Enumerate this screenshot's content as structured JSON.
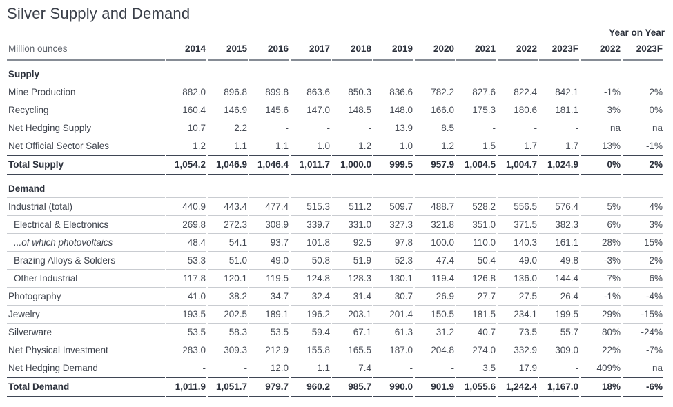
{
  "colors": {
    "text": "#454a54",
    "label": "#3e434d",
    "muted": "#5c616a",
    "strong": "#2c313c",
    "rule_light": "#c9ccd1",
    "rule_medium": "#868c95",
    "rule_dark": "#3f4655"
  },
  "page": {
    "title": "Silver Supply and Demand",
    "year_on_year_label": "Year on Year"
  },
  "table": {
    "unit_label": "Million ounces",
    "year_columns": [
      "2014",
      "2015",
      "2016",
      "2017",
      "2018",
      "2019",
      "2020",
      "2021",
      "2022",
      "2023F"
    ],
    "yoy_columns": [
      "2022",
      "2023F"
    ],
    "sections": [
      {
        "heading": "Supply",
        "rows": [
          {
            "label": "Mine Production",
            "values": [
              "882.0",
              "896.8",
              "899.8",
              "863.6",
              "850.3",
              "836.6",
              "782.2",
              "827.6",
              "822.4",
              "842.1"
            ],
            "yoy": [
              "-1%",
              "2%"
            ]
          },
          {
            "label": "Recycling",
            "values": [
              "160.4",
              "146.9",
              "145.6",
              "147.0",
              "148.5",
              "148.0",
              "166.0",
              "175.3",
              "180.6",
              "181.1"
            ],
            "yoy": [
              "3%",
              "0%"
            ]
          },
          {
            "label": "Net Hedging Supply",
            "values": [
              "10.7",
              "2.2",
              "-",
              "-",
              "-",
              "13.9",
              "8.5",
              "-",
              "-",
              "-"
            ],
            "yoy": [
              "na",
              "na"
            ]
          },
          {
            "label": "Net Official Sector Sales",
            "values": [
              "1.2",
              "1.1",
              "1.1",
              "1.0",
              "1.2",
              "1.0",
              "1.2",
              "1.5",
              "1.7",
              "1.7"
            ],
            "yoy": [
              "13%",
              "-1%"
            ]
          }
        ],
        "total": {
          "label": "Total Supply",
          "values": [
            "1,054.2",
            "1,046.9",
            "1,046.4",
            "1,011.7",
            "1,000.0",
            "999.5",
            "957.9",
            "1,004.5",
            "1,004.7",
            "1,024.9"
          ],
          "yoy": [
            "0%",
            "2%"
          ]
        }
      },
      {
        "heading": "Demand",
        "rows": [
          {
            "label": "Industrial (total)",
            "values": [
              "440.9",
              "443.4",
              "477.4",
              "515.3",
              "511.2",
              "509.7",
              "488.7",
              "528.2",
              "556.5",
              "576.4"
            ],
            "yoy": [
              "5%",
              "4%"
            ]
          },
          {
            "label": "Electrical & Electronics",
            "indent": true,
            "values": [
              "269.8",
              "272.3",
              "308.9",
              "339.7",
              "331.0",
              "327.3",
              "321.8",
              "351.0",
              "371.5",
              "382.3"
            ],
            "yoy": [
              "6%",
              "3%"
            ]
          },
          {
            "label": "...of which photovoltaics",
            "indent": true,
            "italic": true,
            "values": [
              "48.4",
              "54.1",
              "93.7",
              "101.8",
              "92.5",
              "97.8",
              "100.0",
              "110.0",
              "140.3",
              "161.1"
            ],
            "yoy": [
              "28%",
              "15%"
            ]
          },
          {
            "label": "Brazing Alloys & Solders",
            "indent": true,
            "values": [
              "53.3",
              "51.0",
              "49.0",
              "50.8",
              "51.9",
              "52.3",
              "47.4",
              "50.4",
              "49.0",
              "49.8"
            ],
            "yoy": [
              "-3%",
              "2%"
            ]
          },
          {
            "label": "Other Industrial",
            "indent": true,
            "values": [
              "117.8",
              "120.1",
              "119.5",
              "124.8",
              "128.3",
              "130.1",
              "119.4",
              "126.8",
              "136.0",
              "144.4"
            ],
            "yoy": [
              "7%",
              "6%"
            ]
          },
          {
            "label": "Photography",
            "values": [
              "41.0",
              "38.2",
              "34.7",
              "32.4",
              "31.4",
              "30.7",
              "26.9",
              "27.7",
              "27.5",
              "26.4"
            ],
            "yoy": [
              "-1%",
              "-4%"
            ]
          },
          {
            "label": "Jewelry",
            "values": [
              "193.5",
              "202.5",
              "189.1",
              "196.2",
              "203.1",
              "201.4",
              "150.5",
              "181.5",
              "234.1",
              "199.5"
            ],
            "yoy": [
              "29%",
              "-15%"
            ]
          },
          {
            "label": "Silverware",
            "values": [
              "53.5",
              "58.3",
              "53.5",
              "59.4",
              "67.1",
              "61.3",
              "31.2",
              "40.7",
              "73.5",
              "55.7"
            ],
            "yoy": [
              "80%",
              "-24%"
            ]
          },
          {
            "label": "Net Physical Investment",
            "values": [
              "283.0",
              "309.3",
              "212.9",
              "155.8",
              "165.5",
              "187.0",
              "204.8",
              "274.0",
              "332.9",
              "309.0"
            ],
            "yoy": [
              "22%",
              "-7%"
            ]
          },
          {
            "label": "Net Hedging Demand",
            "values": [
              "-",
              "-",
              "12.0",
              "1.1",
              "7.4",
              "-",
              "-",
              "3.5",
              "17.9",
              "-"
            ],
            "yoy": [
              "409%",
              "na"
            ]
          }
        ],
        "total": {
          "label": "Total Demand",
          "values": [
            "1,011.9",
            "1,051.7",
            "979.7",
            "960.2",
            "985.7",
            "990.0",
            "901.9",
            "1,055.6",
            "1,242.4",
            "1,167.0"
          ],
          "yoy": [
            "18%",
            "-6%"
          ]
        }
      }
    ]
  }
}
